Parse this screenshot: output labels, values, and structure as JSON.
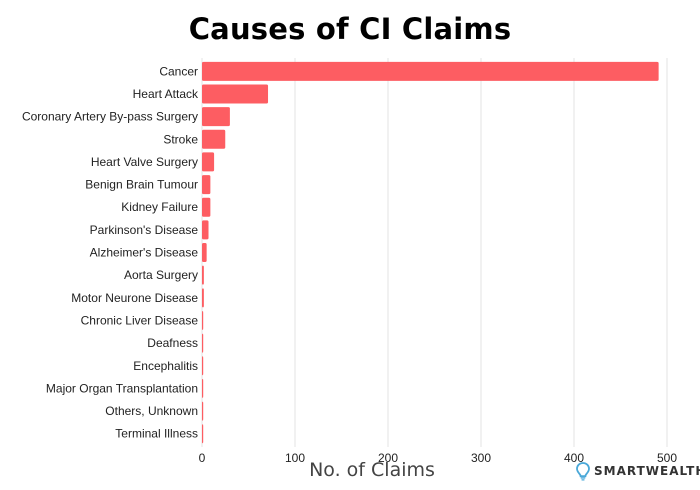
{
  "chart_data": {
    "type": "bar",
    "orientation": "horizontal",
    "title": "Causes of CI Claims",
    "xlabel": "No. of Claims",
    "ylabel": "",
    "xlim": [
      0,
      500
    ],
    "xticks": [
      0,
      100,
      200,
      300,
      400,
      500
    ],
    "grid": "vertical",
    "categories": [
      "Cancer",
      "Heart Attack",
      "Coronary Artery By-pass Surgery",
      "Stroke",
      "Heart Valve Surgery",
      "Benign Brain Tumour",
      "Kidney Failure",
      "Parkinson's Disease",
      "Alzheimer's Disease",
      "Aorta Surgery",
      "Motor Neurone Disease",
      "Chronic Liver Disease",
      "Deafness",
      "Encephalitis",
      "Major Organ Transplantation",
      "Others, Unknown",
      "Terminal Illness"
    ],
    "values": [
      491,
      71,
      30,
      25,
      13,
      9,
      9,
      7,
      5,
      2,
      2,
      1,
      1,
      1,
      1,
      1,
      1
    ],
    "bar_color": "#fd5d62"
  },
  "brand": {
    "name": "SMARTWEALTH",
    "icon": "lightbulb-icon",
    "icon_color": "#4aa8d8"
  }
}
